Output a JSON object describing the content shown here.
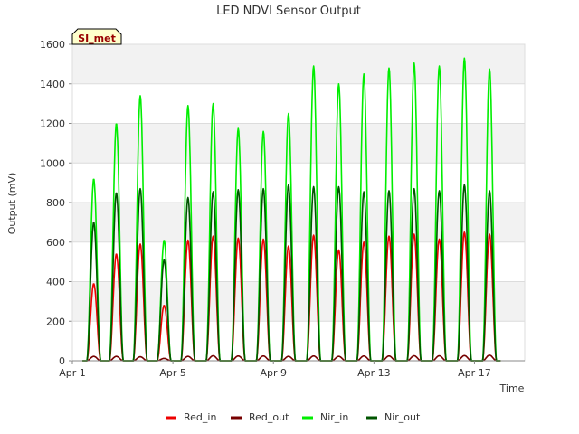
{
  "chart_data": {
    "type": "line",
    "title": "LED NDVI Sensor Output",
    "xlabel": "Time",
    "ylabel": "Output (mV)",
    "site_label": "SI_met",
    "x_ticks": [
      "Apr 1",
      "Apr 5",
      "Apr 9",
      "Apr 13",
      "Apr 17"
    ],
    "x_tick_days": [
      1,
      5,
      9,
      13,
      17
    ],
    "xlim": [
      1,
      19
    ],
    "ylim": [
      0,
      1600
    ],
    "y_ticks": [
      0,
      200,
      400,
      600,
      800,
      1000,
      1200,
      1400,
      1600
    ],
    "grid": true,
    "legend_position": "bottom",
    "days": [
      1.85,
      2.75,
      3.7,
      4.65,
      5.6,
      6.6,
      7.6,
      8.6,
      9.6,
      10.6,
      11.6,
      12.6,
      13.6,
      14.6,
      15.6,
      16.6,
      17.6
    ],
    "series": [
      {
        "name": "Red_in",
        "color": "#ee0000",
        "peaks": [
          390,
          540,
          590,
          280,
          610,
          630,
          620,
          615,
          580,
          635,
          560,
          600,
          630,
          640,
          615,
          650,
          640
        ]
      },
      {
        "name": "Red_out",
        "color": "#770000",
        "peaks": [
          22,
          22,
          20,
          12,
          22,
          25,
          24,
          24,
          22,
          24,
          22,
          24,
          24,
          25,
          25,
          26,
          28
        ]
      },
      {
        "name": "Nir_in",
        "color": "#00ee00",
        "peaks": [
          920,
          1200,
          1340,
          610,
          1290,
          1300,
          1175,
          1160,
          1250,
          1490,
          1400,
          1450,
          1480,
          1505,
          1490,
          1530,
          1475
        ]
      },
      {
        "name": "Nir_out",
        "color": "#005500",
        "peaks": [
          700,
          850,
          870,
          510,
          825,
          855,
          865,
          870,
          890,
          880,
          880,
          855,
          860,
          870,
          860,
          890,
          860
        ]
      }
    ]
  }
}
